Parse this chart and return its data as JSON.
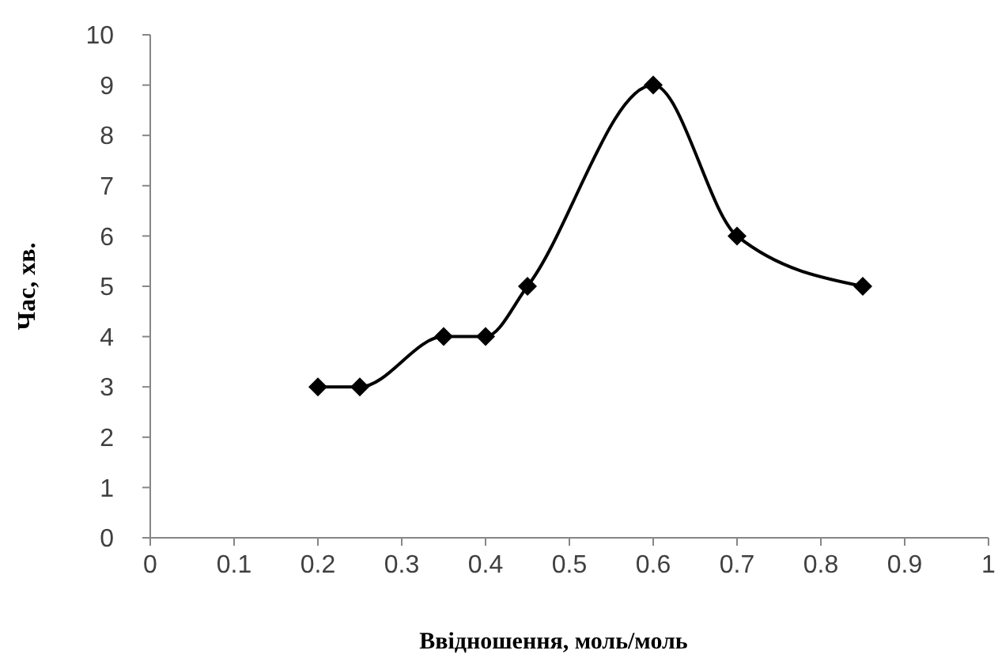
{
  "chart_data": {
    "type": "line",
    "xlabel": "Ввідношення, моль/моль",
    "ylabel": "Час, хв.",
    "x": [
      0.2,
      0.25,
      0.35,
      0.4,
      0.45,
      0.6,
      0.7,
      0.85
    ],
    "series": [
      {
        "color": "#000000",
        "values": [
          3,
          3,
          4,
          4,
          5,
          9,
          6,
          5
        ]
      }
    ],
    "xlim": [
      0,
      1
    ],
    "xticks": [
      0,
      0.1,
      0.2,
      0.3,
      0.4,
      0.5,
      0.6,
      0.7,
      0.8,
      0.9,
      1
    ],
    "ylim": [
      0,
      10
    ],
    "yticks": [
      0,
      1,
      2,
      3,
      4,
      5,
      6,
      7,
      8,
      9,
      10
    ],
    "marker": "diamond",
    "line_style": "solid",
    "grid": false
  }
}
